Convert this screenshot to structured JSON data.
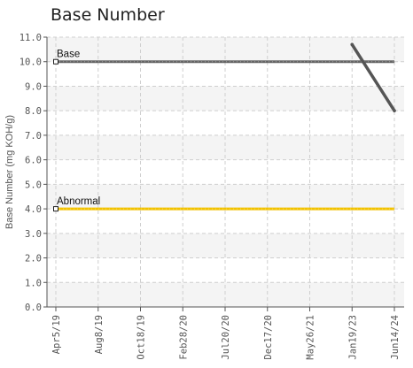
{
  "chart_data": {
    "type": "line",
    "title": "Base Number",
    "xlabel": "",
    "ylabel": "Base Number (mg KOH/g)",
    "ylim": [
      0,
      11
    ],
    "yticks": [
      "0.0",
      "1.0",
      "2.0",
      "3.0",
      "4.0",
      "5.0",
      "6.0",
      "7.0",
      "8.0",
      "9.0",
      "10.0",
      "11.0"
    ],
    "categories": [
      "Apr5/19",
      "Aug8/19",
      "Oct18/19",
      "Feb28/20",
      "Jul20/20",
      "Dec17/20",
      "May26/21",
      "Jan19/23",
      "Jun14/24"
    ],
    "grid": true,
    "reference_lines": [
      {
        "label": "Base",
        "value": 10.0,
        "color": "#666666"
      },
      {
        "label": "Abnormal",
        "value": 4.0,
        "color": "#f2c200"
      }
    ],
    "series": [
      {
        "values": [
          null,
          null,
          null,
          null,
          null,
          null,
          null,
          10.7,
          8.0
        ],
        "color": "#555555"
      }
    ]
  }
}
